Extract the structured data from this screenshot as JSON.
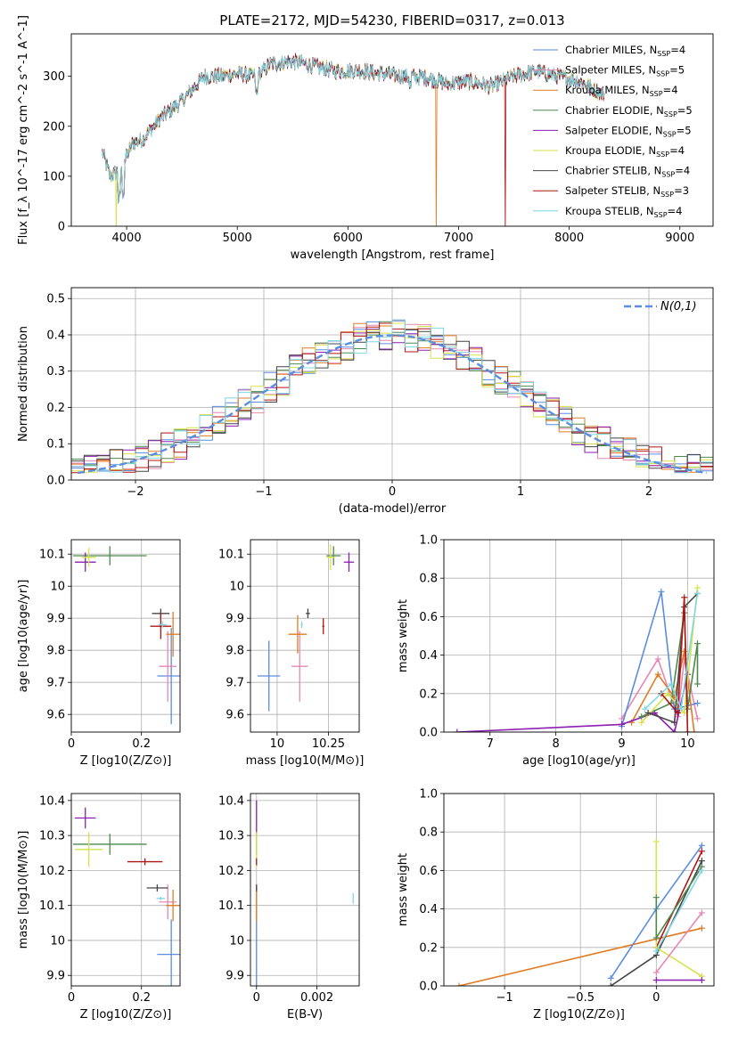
{
  "figure_title": "PLATE=2172, MJD=54230, FIBERID=0317, z=0.013",
  "colors": {
    "Chabrier MILES": "#5b8de0",
    "Salpeter MILES": "#e687b3",
    "Kroupa MILES": "#e07b22",
    "Chabrier ELODIE": "#4e8a4e",
    "Salpeter ELODIE": "#8a1fb0",
    "Kroupa ELODIE": "#d7e34a",
    "Chabrier STELIB": "#444444",
    "Salpeter STELIB": "#b01515",
    "Kroupa STELIB": "#7fd8e2",
    "normal": "#5b8de0"
  },
  "chart_data": [
    {
      "id": "spectrum",
      "type": "line",
      "xlabel": "wavelength [Angstrom, rest frame]",
      "ylabel": "Flux [f_λ 10^-17 erg cm^-2 s^-1 A^-1]",
      "xlim": [
        3500,
        9300
      ],
      "ylim": [
        0,
        385
      ],
      "xticks": [
        4000,
        5000,
        6000,
        7000,
        8000,
        9000
      ],
      "yticks": [
        0,
        100,
        200,
        300
      ],
      "legend_position": "top-right",
      "legend": [
        {
          "model": "Chabrier MILES",
          "n_ssp": 4
        },
        {
          "model": "Salpeter MILES",
          "n_ssp": 5
        },
        {
          "model": "Kroupa MILES",
          "n_ssp": 4
        },
        {
          "model": "Chabrier ELODIE",
          "n_ssp": 5
        },
        {
          "model": "Salpeter ELODIE",
          "n_ssp": 5
        },
        {
          "model": "Kroupa ELODIE",
          "n_ssp": 4
        },
        {
          "model": "Chabrier STELIB",
          "n_ssp": 4
        },
        {
          "model": "Salpeter STELIB",
          "n_ssp": 3
        },
        {
          "model": "Kroupa STELIB",
          "n_ssp": 4
        }
      ],
      "continuum": [
        [
          3780,
          150
        ],
        [
          3850,
          100
        ],
        [
          3950,
          115
        ],
        [
          4050,
          165
        ],
        [
          4150,
          175
        ],
        [
          4300,
          215
        ],
        [
          4500,
          250
        ],
        [
          4700,
          300
        ],
        [
          4860,
          300
        ],
        [
          5000,
          305
        ],
        [
          5180,
          300
        ],
        [
          5300,
          325
        ],
        [
          5500,
          330
        ],
        [
          5700,
          320
        ],
        [
          5900,
          310
        ],
        [
          6100,
          312
        ],
        [
          6300,
          305
        ],
        [
          6500,
          300
        ],
        [
          6700,
          298
        ],
        [
          6900,
          285
        ],
        [
          7100,
          290
        ],
        [
          7300,
          280
        ],
        [
          7500,
          300
        ],
        [
          7700,
          310
        ],
        [
          7900,
          300
        ],
        [
          8100,
          290
        ],
        [
          8300,
          265
        ]
      ],
      "spectrum_start": 3780,
      "drops": [
        {
          "model": "Kroupa ELODIE",
          "wavelength": 3905
        },
        {
          "model": "Kroupa MILES",
          "wavelength": 6800
        },
        {
          "model": "Salpeter STELIB",
          "wavelength": 7420
        }
      ],
      "stelib_end": 8320
    },
    {
      "id": "residuals",
      "type": "histogram",
      "xlabel": "(data-model)/error",
      "ylabel": "Normed distribution",
      "xlim": [
        -2.5,
        2.5
      ],
      "ylim": [
        0,
        0.53
      ],
      "xticks": [
        -2,
        -1,
        0,
        1,
        2
      ],
      "yticks": [
        0.0,
        0.1,
        0.2,
        0.3,
        0.4,
        0.5
      ],
      "bin_width": 0.1,
      "legend": "N(0,1)",
      "legend_position": "top-right",
      "curve": "standard normal pdf"
    },
    {
      "id": "age_vs_Z",
      "type": "scatter",
      "xlabel": "Z [log10(Z/Z⊙)]",
      "ylabel": "age  [log10(age/yr)]",
      "xlim": [
        0.0,
        0.31
      ],
      "ylim": [
        9.545,
        10.145
      ],
      "xticks": [
        0.0,
        0.2
      ],
      "yticks": [
        9.6,
        9.7,
        9.8,
        9.9,
        10.0,
        10.1
      ],
      "points": [
        {
          "model": "Chabrier MILES",
          "x": 0.285,
          "xerr": 0.04,
          "y": 9.72,
          "yerr": 0.15
        },
        {
          "model": "Salpeter MILES",
          "x": 0.275,
          "xerr": 0.025,
          "y": 9.75,
          "yerr": 0.11
        },
        {
          "model": "Kroupa MILES",
          "x": 0.29,
          "xerr": 0.02,
          "y": 9.85,
          "yerr": 0.07
        },
        {
          "model": "Chabrier ELODIE",
          "x": 0.11,
          "xerr": 0.105,
          "y": 10.095,
          "yerr": 0.03
        },
        {
          "model": "Salpeter ELODIE",
          "x": 0.04,
          "xerr": 0.03,
          "y": 10.075,
          "yerr": 0.03
        },
        {
          "model": "Kroupa ELODIE",
          "x": 0.05,
          "xerr": 0.02,
          "y": 10.09,
          "yerr": 0.03
        },
        {
          "model": "Chabrier STELIB",
          "x": 0.255,
          "xerr": 0.025,
          "y": 9.915,
          "yerr": 0.015
        },
        {
          "model": "Salpeter STELIB",
          "x": 0.255,
          "xerr": 0.03,
          "y": 9.875,
          "yerr": 0.04
        },
        {
          "model": "Kroupa STELIB",
          "x": 0.26,
          "xerr": 0.012,
          "y": 9.88,
          "yerr": 0.01
        }
      ]
    },
    {
      "id": "age_vs_mass",
      "type": "scatter",
      "xlabel": "mass [log10(M/M⊙)]",
      "ylabel": "",
      "xlim": [
        9.87,
        10.4
      ],
      "ylim": [
        9.545,
        10.145
      ],
      "xticks": [
        10.0,
        10.25
      ],
      "yticks": [
        9.6,
        9.7,
        9.8,
        9.9,
        10.0,
        10.1
      ],
      "points": [
        {
          "model": "Chabrier MILES",
          "x": 9.96,
          "xerr": 0.055,
          "y": 9.72,
          "yerr": 0.11
        },
        {
          "model": "Salpeter MILES",
          "x": 10.11,
          "xerr": 0.04,
          "y": 9.75,
          "yerr": 0.11
        },
        {
          "model": "Kroupa MILES",
          "x": 10.1,
          "xerr": 0.045,
          "y": 9.85,
          "yerr": 0.06
        },
        {
          "model": "Chabrier ELODIE",
          "x": 10.275,
          "xerr": 0.035,
          "y": 10.095,
          "yerr": 0.03
        },
        {
          "model": "Salpeter ELODIE",
          "x": 10.35,
          "xerr": 0.025,
          "y": 10.075,
          "yerr": 0.03
        },
        {
          "model": "Kroupa ELODIE",
          "x": 10.26,
          "xerr": 0.02,
          "y": 10.09,
          "yerr": 0.04
        },
        {
          "model": "Chabrier STELIB",
          "x": 10.15,
          "xerr": 0.01,
          "y": 9.915,
          "yerr": 0.015
        },
        {
          "model": "Salpeter STELIB",
          "x": 10.225,
          "xerr": 0.005,
          "y": 9.875,
          "yerr": 0.025
        },
        {
          "model": "Kroupa STELIB",
          "x": 10.12,
          "xerr": 0.005,
          "y": 9.88,
          "yerr": 0.01
        }
      ]
    },
    {
      "id": "mass_weight_vs_age",
      "type": "line",
      "xlabel": "age  [log10(age/yr)]",
      "ylabel": "mass weight",
      "xlim": [
        6.3,
        10.4
      ],
      "ylim": [
        0.0,
        1.0
      ],
      "xticks": [
        7,
        8,
        9,
        10
      ],
      "yticks": [
        0.0,
        0.2,
        0.4,
        0.6,
        0.8,
        1.0
      ],
      "series": [
        {
          "model": "Salpeter MILES",
          "points": [
            [
              9.0,
              0.07
            ],
            [
              9.55,
              0.38
            ],
            [
              9.85,
              0.08
            ],
            [
              9.95,
              0.38
            ],
            [
              10.15,
              0.07
            ]
          ]
        },
        {
          "model": "Chabrier MILES",
          "points": [
            [
              9.0,
              0.03
            ],
            [
              9.6,
              0.73
            ],
            [
              9.8,
              0.12
            ],
            [
              10.15,
              0.15
            ]
          ]
        },
        {
          "model": "Kroupa MILES",
          "points": [
            [
              9.15,
              0.05
            ],
            [
              9.55,
              0.3
            ],
            [
              9.8,
              0.18
            ],
            [
              9.95,
              0.42
            ],
            [
              10.1,
              0.0
            ]
          ]
        },
        {
          "model": "Salpeter ELODIE",
          "points": [
            [
              6.5,
              0.0
            ],
            [
              9.0,
              0.04
            ],
            [
              9.5,
              0.1
            ],
            [
              9.8,
              0.0
            ],
            [
              10.0,
              0.3
            ]
          ]
        },
        {
          "model": "Chabrier ELODIE",
          "points": [
            [
              9.3,
              0.08
            ],
            [
              9.75,
              0.15
            ],
            [
              9.95,
              0.62
            ],
            [
              10.0,
              0.12
            ],
            [
              10.15,
              0.46
            ],
            [
              10.15,
              0.25
            ]
          ]
        },
        {
          "model": "Kroupa ELODIE",
          "points": [
            [
              9.3,
              0.05
            ],
            [
              9.7,
              0.2
            ],
            [
              9.95,
              0.1
            ],
            [
              10.15,
              0.75
            ]
          ]
        },
        {
          "model": "Chabrier STELIB",
          "points": [
            [
              9.4,
              0.1
            ],
            [
              9.8,
              0.05
            ],
            [
              9.95,
              0.65
            ],
            [
              10.15,
              0.72
            ]
          ]
        },
        {
          "model": "Salpeter STELIB",
          "points": [
            [
              9.6,
              0.2
            ],
            [
              9.85,
              0.1
            ],
            [
              9.95,
              0.7
            ],
            [
              10.0,
              0.0
            ]
          ]
        },
        {
          "model": "Kroupa STELIB",
          "points": [
            [
              9.35,
              0.12
            ],
            [
              9.75,
              0.25
            ],
            [
              9.9,
              0.12
            ],
            [
              10.15,
              0.72
            ]
          ]
        }
      ]
    },
    {
      "id": "mass_vs_Z",
      "type": "scatter",
      "xlabel": "Z [log10(Z/Z⊙)]",
      "ylabel": "mass [log10(M/M⊙)]",
      "xlim": [
        0.0,
        0.31
      ],
      "ylim": [
        9.87,
        10.42
      ],
      "xticks": [
        0.0,
        0.2
      ],
      "yticks": [
        9.9,
        10.0,
        10.1,
        10.2,
        10.3,
        10.4
      ],
      "points": [
        {
          "model": "Chabrier MILES",
          "x": 0.285,
          "xerr": 0.04,
          "y": 9.96,
          "yerr": 0.1
        },
        {
          "model": "Salpeter MILES",
          "x": 0.275,
          "xerr": 0.025,
          "y": 10.11,
          "yerr": 0.05
        },
        {
          "model": "Kroupa MILES",
          "x": 0.29,
          "xerr": 0.02,
          "y": 10.1,
          "yerr": 0.045
        },
        {
          "model": "Chabrier ELODIE",
          "x": 0.11,
          "xerr": 0.105,
          "y": 10.275,
          "yerr": 0.03
        },
        {
          "model": "Salpeter ELODIE",
          "x": 0.04,
          "xerr": 0.03,
          "y": 10.35,
          "yerr": 0.03
        },
        {
          "model": "Kroupa ELODIE",
          "x": 0.05,
          "xerr": 0.04,
          "y": 10.26,
          "yerr": 0.05
        },
        {
          "model": "Chabrier STELIB",
          "x": 0.245,
          "xerr": 0.03,
          "y": 10.15,
          "yerr": 0.01
        },
        {
          "model": "Salpeter STELIB",
          "x": 0.21,
          "xerr": 0.05,
          "y": 10.225,
          "yerr": 0.01
        },
        {
          "model": "Kroupa STELIB",
          "x": 0.255,
          "xerr": 0.012,
          "y": 10.12,
          "yerr": 0.005
        }
      ]
    },
    {
      "id": "mass_vs_ebv",
      "type": "scatter",
      "xlabel": "E(B-V)",
      "ylabel": "",
      "xlim": [
        -0.0002,
        0.0034
      ],
      "ylim": [
        9.87,
        10.42
      ],
      "xticks": [
        0.0,
        0.002
      ],
      "yticks": [
        9.9,
        10.0,
        10.1,
        10.2,
        10.3,
        10.4
      ],
      "points": [
        {
          "model": "Chabrier MILES",
          "x": 0.0,
          "xerr": 0,
          "y": 9.96,
          "yerr": 0.1
        },
        {
          "model": "Salpeter MILES",
          "x": 0.0,
          "xerr": 0,
          "y": 10.11,
          "yerr": 0.05
        },
        {
          "model": "Kroupa MILES",
          "x": 0.0,
          "xerr": 0,
          "y": 10.1,
          "yerr": 0.045
        },
        {
          "model": "Chabrier ELODIE",
          "x": 0.0,
          "xerr": 0,
          "y": 10.275,
          "yerr": 0.03
        },
        {
          "model": "Salpeter ELODIE",
          "x": 0.0,
          "xerr": 0,
          "y": 10.35,
          "yerr": 0.05
        },
        {
          "model": "Kroupa ELODIE",
          "x": 0.0,
          "xerr": 0,
          "y": 10.26,
          "yerr": 0.05
        },
        {
          "model": "Chabrier STELIB",
          "x": 0.0,
          "xerr": 0,
          "y": 10.15,
          "yerr": 0.01
        },
        {
          "model": "Salpeter STELIB",
          "x": 0.0,
          "xerr": 0,
          "y": 10.225,
          "yerr": 0.01
        },
        {
          "model": "Kroupa STELIB",
          "x": 0.0032,
          "xerr": 0,
          "y": 10.12,
          "yerr": 0.015
        }
      ]
    },
    {
      "id": "mass_weight_vs_Z",
      "type": "line",
      "xlabel": "Z [log10(Z/Z⊙)]",
      "ylabel": "mass weight",
      "xlim": [
        -1.4,
        0.38
      ],
      "ylim": [
        0.0,
        1.0
      ],
      "xticks": [
        -1.0,
        -0.5,
        0.0
      ],
      "yticks": [
        0.0,
        0.2,
        0.4,
        0.6,
        0.8,
        1.0
      ],
      "series": [
        {
          "model": "Kroupa MILES",
          "points": [
            [
              -1.3,
              0.0
            ],
            [
              0.3,
              0.3
            ]
          ]
        },
        {
          "model": "Chabrier MILES",
          "points": [
            [
              -0.3,
              0.04
            ],
            [
              0.0,
              0.4
            ],
            [
              0.3,
              0.73
            ]
          ]
        },
        {
          "model": "Chabrier STELIB",
          "points": [
            [
              -0.3,
              0.0
            ],
            [
              0.0,
              0.16
            ],
            [
              0.3,
              0.65
            ]
          ]
        },
        {
          "model": "Salpeter STELIB",
          "points": [
            [
              0.0,
              0.2
            ],
            [
              0.3,
              0.7
            ]
          ]
        },
        {
          "model": "Kroupa ELODIE",
          "points": [
            [
              0.0,
              0.75
            ],
            [
              0.0,
              0.2
            ],
            [
              0.3,
              0.05
            ]
          ]
        },
        {
          "model": "Chabrier ELODIE",
          "points": [
            [
              0.0,
              0.46
            ],
            [
              0.0,
              0.25
            ],
            [
              0.3,
              0.62
            ]
          ]
        },
        {
          "model": "Salpeter ELODIE",
          "points": [
            [
              0.0,
              0.03
            ],
            [
              0.3,
              0.03
            ]
          ]
        },
        {
          "model": "Salpeter MILES",
          "points": [
            [
              0.0,
              0.07
            ],
            [
              0.3,
              0.38
            ]
          ]
        },
        {
          "model": "Kroupa STELIB",
          "points": [
            [
              0.0,
              0.18
            ],
            [
              0.3,
              0.6
            ]
          ]
        }
      ]
    }
  ]
}
